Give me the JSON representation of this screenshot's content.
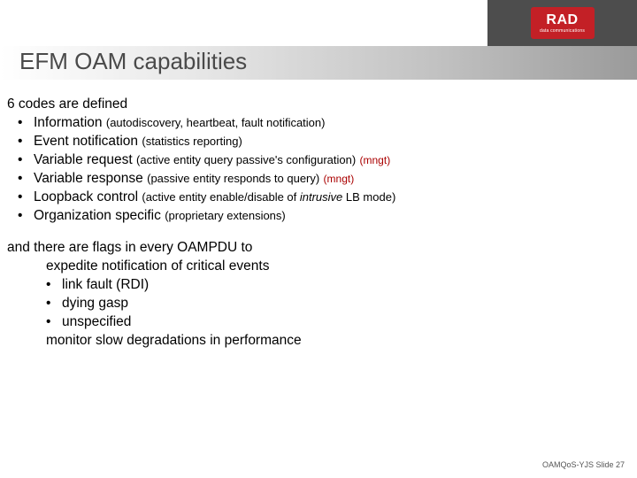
{
  "logo": {
    "main": "RAD",
    "sub": "data communications"
  },
  "title": "EFM OAM capabilities",
  "intro": "6 codes are defined",
  "codes": [
    {
      "name": "Information",
      "desc": "(autodiscovery, heartbeat, fault notification)",
      "tag": ""
    },
    {
      "name": "Event notification",
      "desc": "(statistics reporting)",
      "tag": ""
    },
    {
      "name": "Variable request",
      "desc": "(active entity query passive's configuration)",
      "tag": "(mngt)"
    },
    {
      "name": "Variable response",
      "desc": "(passive entity responds to query)",
      "tag": "(mngt)"
    },
    {
      "name": "Loopback control",
      "desc": "(active entity enable/disable of intrusive LB mode)",
      "tag": "",
      "italic_word": "intrusive"
    },
    {
      "name": "Organization specific",
      "desc": "(proprietary extensions)",
      "tag": ""
    }
  ],
  "section2_intro": "and there are flags in every OAMPDU to",
  "section2_line1": "expedite notification of critical events",
  "flags": [
    "link fault (RDI)",
    "dying gasp",
    "unspecified"
  ],
  "section2_line2": "monitor slow degradations in performance",
  "footer": "OAMQoS-YJS  Slide 27",
  "colors": {
    "title_text": "#4a4a4a",
    "tag": "#a00",
    "logo_bg": "#c32026",
    "header_grey": "#4d4d4d"
  }
}
